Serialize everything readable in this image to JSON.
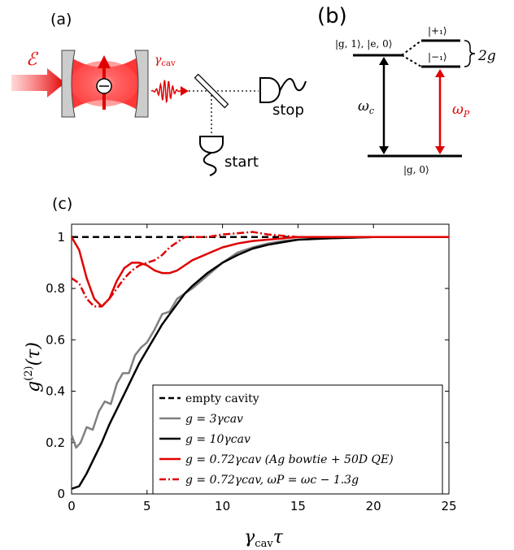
{
  "panel_a": {
    "label": "(a)",
    "field_symbol": "ℰ",
    "gamma_label": "γ",
    "gamma_sub": "cav",
    "stop_label": "stop",
    "start_label": "start",
    "colors": {
      "red": "#e00000",
      "mirror": "#c8c8c8"
    }
  },
  "panel_b": {
    "label": "(b)",
    "level_g1_e0": "|g, 1⟩, |e, 0⟩",
    "level_plus": "|+₁⟩",
    "level_minus": "|−₁⟩",
    "splitting": "2g",
    "omega_c": "ω",
    "omega_c_sub": "c",
    "omega_p": "ω",
    "omega_p_sub": "P",
    "level_g0": "|g, 0⟩"
  },
  "panel_c": {
    "label": "(c)",
    "ylabel_main": "g",
    "ylabel_sup": "(2)",
    "ylabel_arg": "(τ)",
    "xlabel_main": "γ",
    "xlabel_sub": "cav",
    "xlabel_tau": "τ",
    "legend": [
      {
        "text": "empty cavity"
      },
      {
        "text": "g = 3γcav"
      },
      {
        "text": "g = 10γcav"
      },
      {
        "text": "g = 0.72γcav (Ag bowtie + 50D QE)"
      },
      {
        "text": "g = 0.72γcav, ωP = ωc − 1.3g"
      }
    ]
  },
  "chart_data": {
    "type": "line",
    "xlim": [
      0,
      25
    ],
    "ylim": [
      0,
      1.05
    ],
    "xticks": [
      0,
      5,
      10,
      15,
      20,
      25
    ],
    "yticks": [
      0,
      0.2,
      0.4,
      0.6,
      0.8,
      1
    ],
    "ytick_labels": [
      "0",
      "0.2",
      "0.4",
      "0.6",
      "0.8",
      "1"
    ],
    "series": [
      {
        "name": "empty cavity",
        "color": "#000000",
        "dash": "dashed",
        "x": [
          0,
          25
        ],
        "y": [
          1,
          1
        ]
      },
      {
        "name": "g = 3γcav",
        "color": "#808080",
        "dash": "solid",
        "x": [
          0,
          0.3,
          0.6,
          1.0,
          1.4,
          1.8,
          2.2,
          2.6,
          3.0,
          3.4,
          3.8,
          4.2,
          4.6,
          5.0,
          5.5,
          6.0,
          6.5,
          7.0,
          7.5,
          8.0,
          9.0,
          10.0,
          11,
          12,
          13,
          14,
          15,
          17,
          20,
          25
        ],
        "y": [
          0.23,
          0.18,
          0.2,
          0.26,
          0.25,
          0.32,
          0.36,
          0.35,
          0.43,
          0.47,
          0.47,
          0.54,
          0.57,
          0.59,
          0.64,
          0.7,
          0.71,
          0.76,
          0.78,
          0.8,
          0.85,
          0.9,
          0.94,
          0.96,
          0.975,
          0.985,
          0.99,
          0.995,
          1.0,
          1.0
        ]
      },
      {
        "name": "g = 10γcav",
        "color": "#000000",
        "dash": "solid",
        "x": [
          0,
          0.5,
          1.0,
          1.5,
          2.0,
          2.5,
          3.0,
          3.5,
          4.0,
          4.5,
          5.0,
          5.5,
          6.0,
          6.5,
          7.0,
          7.5,
          8.0,
          9.0,
          10,
          11,
          12,
          13,
          14,
          15,
          17,
          20,
          25
        ],
        "y": [
          0.02,
          0.03,
          0.08,
          0.14,
          0.2,
          0.27,
          0.33,
          0.39,
          0.45,
          0.51,
          0.56,
          0.61,
          0.66,
          0.7,
          0.74,
          0.78,
          0.81,
          0.86,
          0.9,
          0.93,
          0.955,
          0.97,
          0.98,
          0.99,
          0.995,
          1.0,
          1.0
        ]
      },
      {
        "name": "g = 0.72γcav (Ag bowtie + 50D QE)",
        "color": "#e00000",
        "dash": "solid",
        "x": [
          0,
          0.5,
          1.0,
          1.5,
          2.0,
          2.5,
          3.0,
          3.5,
          4.0,
          4.5,
          5.0,
          5.5,
          6.0,
          6.5,
          7.0,
          7.5,
          8.0,
          9.0,
          10,
          11,
          12,
          13,
          14,
          15,
          17,
          20,
          25
        ],
        "y": [
          1.0,
          0.95,
          0.84,
          0.76,
          0.73,
          0.76,
          0.83,
          0.88,
          0.9,
          0.9,
          0.89,
          0.87,
          0.86,
          0.86,
          0.87,
          0.89,
          0.91,
          0.935,
          0.96,
          0.975,
          0.985,
          0.99,
          0.995,
          1.0,
          1.0,
          1.0,
          1.0
        ]
      },
      {
        "name": "g = 0.72γcav, ωP = ωc − 1.3g",
        "color": "#e00000",
        "dash": "dashdot",
        "x": [
          0,
          0.5,
          1.0,
          1.5,
          2.0,
          2.5,
          3.0,
          3.5,
          4.0,
          4.5,
          5.0,
          5.5,
          6.0,
          6.5,
          7.0,
          7.5,
          8.0,
          9.0,
          10,
          11,
          12,
          13,
          14,
          15,
          17,
          20,
          25
        ],
        "y": [
          0.84,
          0.82,
          0.76,
          0.73,
          0.73,
          0.76,
          0.8,
          0.84,
          0.87,
          0.89,
          0.9,
          0.91,
          0.93,
          0.96,
          0.98,
          1.0,
          1.0,
          1.0,
          1.01,
          1.015,
          1.02,
          1.01,
          1.005,
          1.0,
          1.0,
          1.0,
          1.0
        ]
      }
    ]
  }
}
